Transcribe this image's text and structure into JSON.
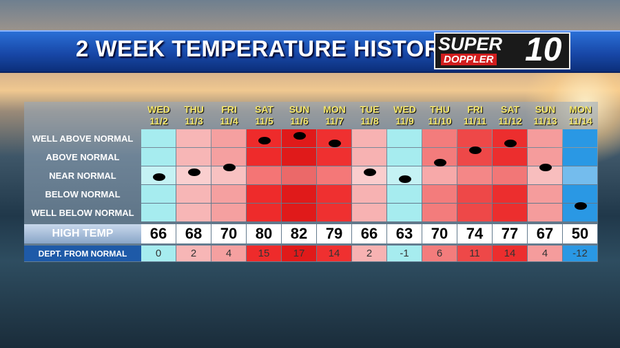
{
  "header": {
    "title": "2 WEEK TEMPERATURE HISTORY",
    "logo": {
      "top": "SUPER",
      "bottom": "DOPPLER",
      "number": "10"
    }
  },
  "table": {
    "row_labels": [
      "WELL ABOVE NORMAL",
      "ABOVE NORMAL",
      "NEAR NORMAL",
      "BELOW NORMAL",
      "WELL BELOW NORMAL"
    ],
    "high_temp_label": "HIGH TEMP",
    "departure_label": "DEPT. FROM NORMAL",
    "columns": [
      {
        "day": "WED",
        "date": "11/2",
        "high": 66,
        "departure": 0,
        "color": "#a6ecef"
      },
      {
        "day": "THU",
        "date": "11/3",
        "high": 68,
        "departure": 2,
        "color": "#f7b6b6"
      },
      {
        "day": "FRI",
        "date": "11/4",
        "high": 70,
        "departure": 4,
        "color": "#f5a0a0"
      },
      {
        "day": "SAT",
        "date": "11/5",
        "high": 80,
        "departure": 15,
        "color": "#ee2b2b"
      },
      {
        "day": "SUN",
        "date": "11/6",
        "high": 82,
        "departure": 17,
        "color": "#e01a1a"
      },
      {
        "day": "MON",
        "date": "11/7",
        "high": 79,
        "departure": 14,
        "color": "#ef3030"
      },
      {
        "day": "TUE",
        "date": "11/8",
        "high": 66,
        "departure": 2,
        "color": "#f7b2b2"
      },
      {
        "day": "WED",
        "date": "11/9",
        "high": 63,
        "departure": -1,
        "color": "#a6ecef"
      },
      {
        "day": "THU",
        "date": "11/10",
        "high": 70,
        "departure": 6,
        "color": "#f37c7c"
      },
      {
        "day": "FRI",
        "date": "11/11",
        "high": 74,
        "departure": 11,
        "color": "#ee4848"
      },
      {
        "day": "SAT",
        "date": "11/12",
        "high": 77,
        "departure": 14,
        "color": "#ec2e2e"
      },
      {
        "day": "SUN",
        "date": "11/13",
        "high": 67,
        "departure": 4,
        "color": "#f59c9c"
      },
      {
        "day": "MON",
        "date": "11/14",
        "high": 50,
        "departure": -12,
        "color": "#2a98e4"
      }
    ]
  }
}
